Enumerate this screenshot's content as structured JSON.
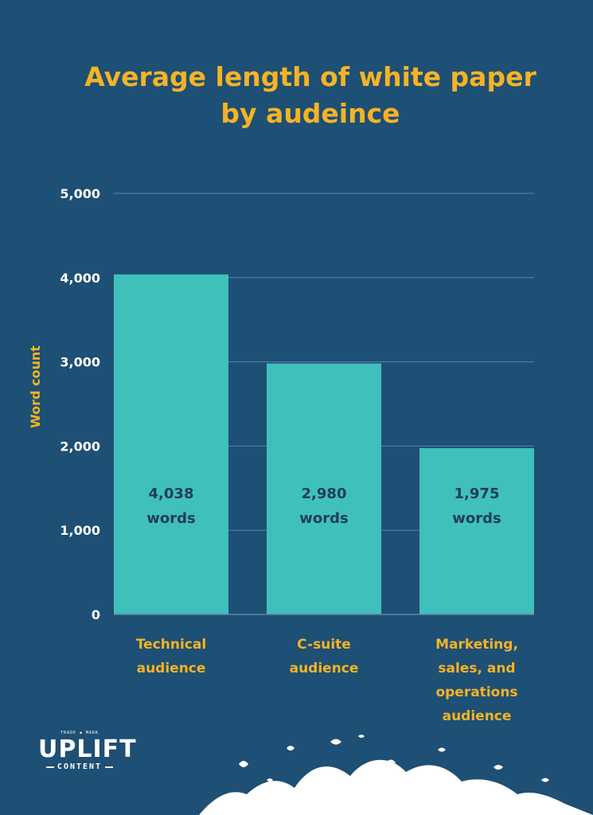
{
  "title": {
    "line1": "Average length of white paper",
    "line2": "by audeince"
  },
  "colors": {
    "background": "#1e4f74",
    "accent": "#f5b325",
    "bar": "#40c0bb",
    "bar_label": "#1e3e55",
    "grid": "#5a86a8",
    "axis_text": "#ffffff"
  },
  "chart_data": {
    "type": "bar",
    "title": "Average length of white paper by audeince",
    "ylabel": "Word count",
    "xlabel": "",
    "ylim": [
      0,
      5000
    ],
    "yticks": [
      0,
      1000,
      2000,
      3000,
      4000,
      5000
    ],
    "ytick_labels": [
      "0",
      "1,000",
      "2,000",
      "3,000",
      "4,000",
      "5,000"
    ],
    "grid": true,
    "categories": [
      [
        "Technical",
        "audience"
      ],
      [
        "C-suite",
        "audience"
      ],
      [
        "Marketing,",
        "sales, and",
        "operations",
        "audience"
      ]
    ],
    "values": [
      4038,
      2980,
      1975
    ],
    "data_labels": [
      [
        "4,038",
        "words"
      ],
      [
        "2,980",
        "words"
      ],
      [
        "1,975",
        "words"
      ]
    ]
  },
  "logo": {
    "trademark": "TRADE ◆ MARK",
    "name": "UPLIFT",
    "subtitle": "CONTENT"
  }
}
